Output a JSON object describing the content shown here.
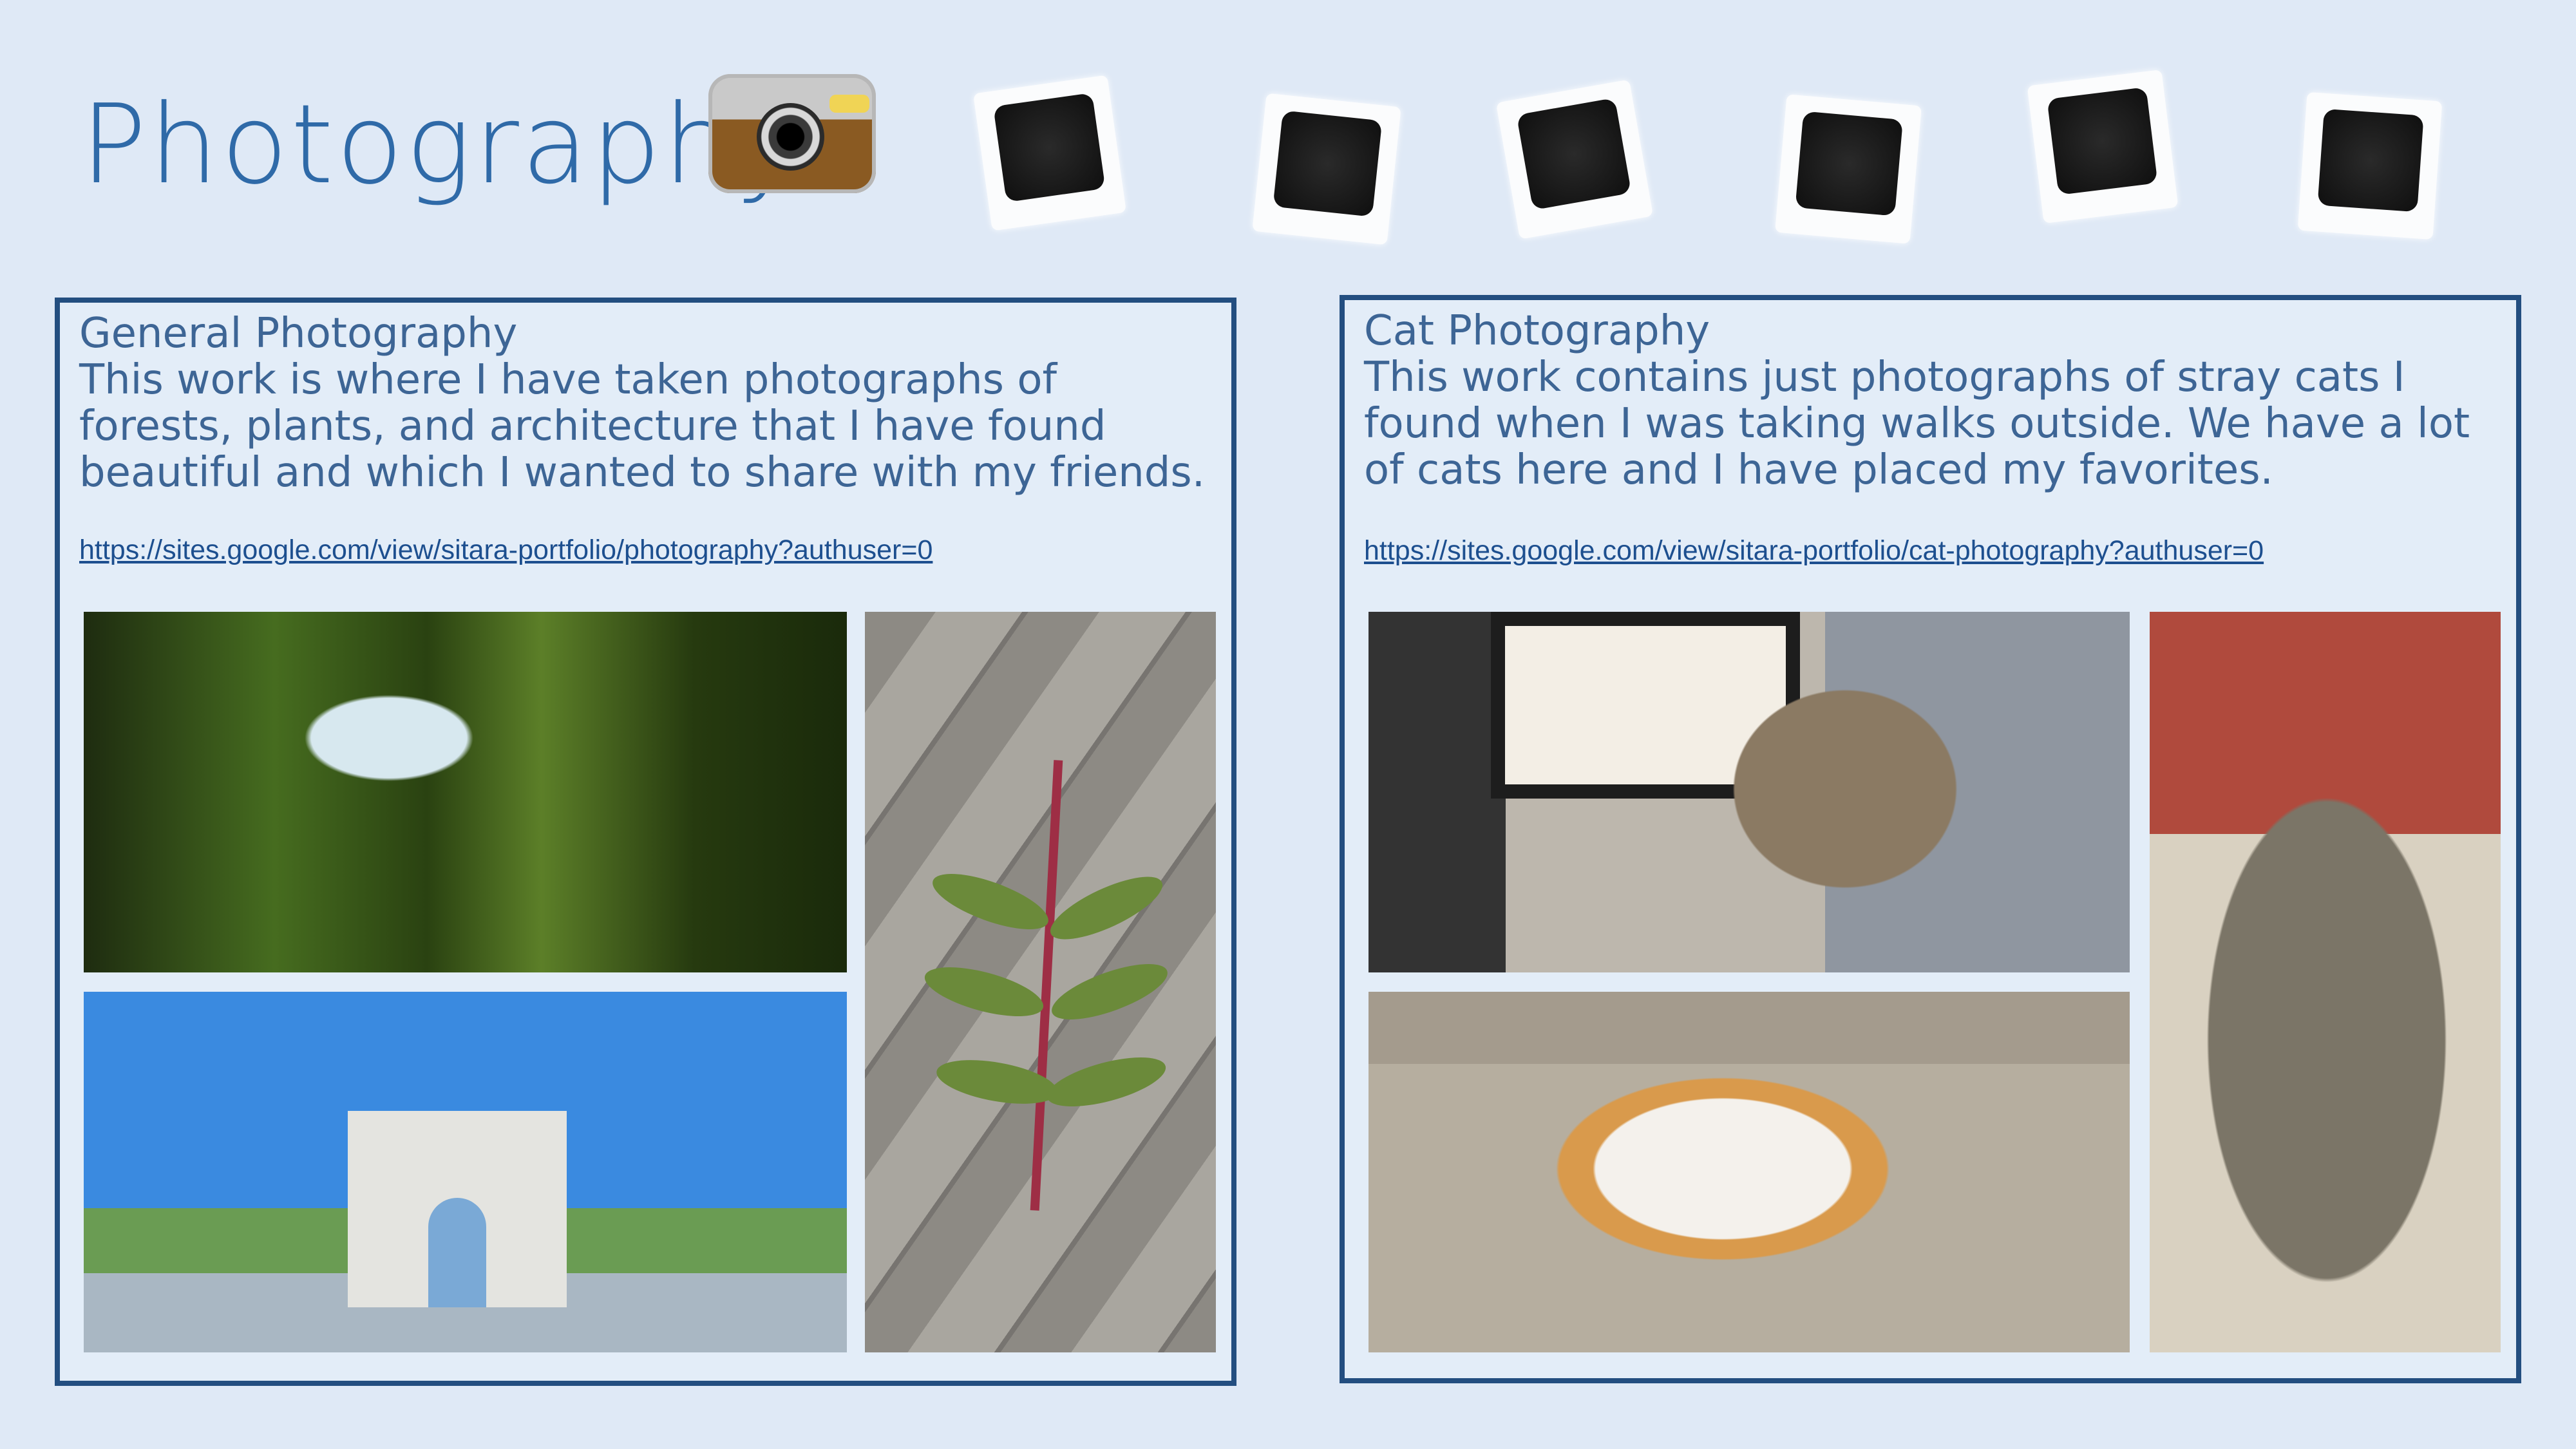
{
  "page": {
    "title": "Photography"
  },
  "icons": {
    "camera": "camera-icon",
    "polaroid": "polaroid-icon"
  },
  "cards": [
    {
      "title": "General Photography",
      "description": "This work is where I have taken photographs of forests, plants, and architecture that I have found beautiful and which I wanted to share with my friends.",
      "link": "https://sites.google.com/view/sitara-portfolio/photography?authuser=0",
      "photos": [
        "forest-photo",
        "leaf-photo",
        "arch-photo"
      ]
    },
    {
      "title": "Cat Photography",
      "description": "This work contains just photographs of stray cats I found when I was taking walks outside. We have a lot of cats here and I have placed my favorites.",
      "link": "https://sites.google.com/view/sitara-portfolio/cat-photography?authuser=0",
      "photos": [
        "cat-lamp-photo",
        "cat-sleeping-photo",
        "cat-sitting-photo"
      ]
    }
  ],
  "colors": {
    "background": "#dfe9f6",
    "title": "#2f6aa8",
    "card_border": "#234e80",
    "text": "#3d6595",
    "link": "#1d4f8f"
  }
}
